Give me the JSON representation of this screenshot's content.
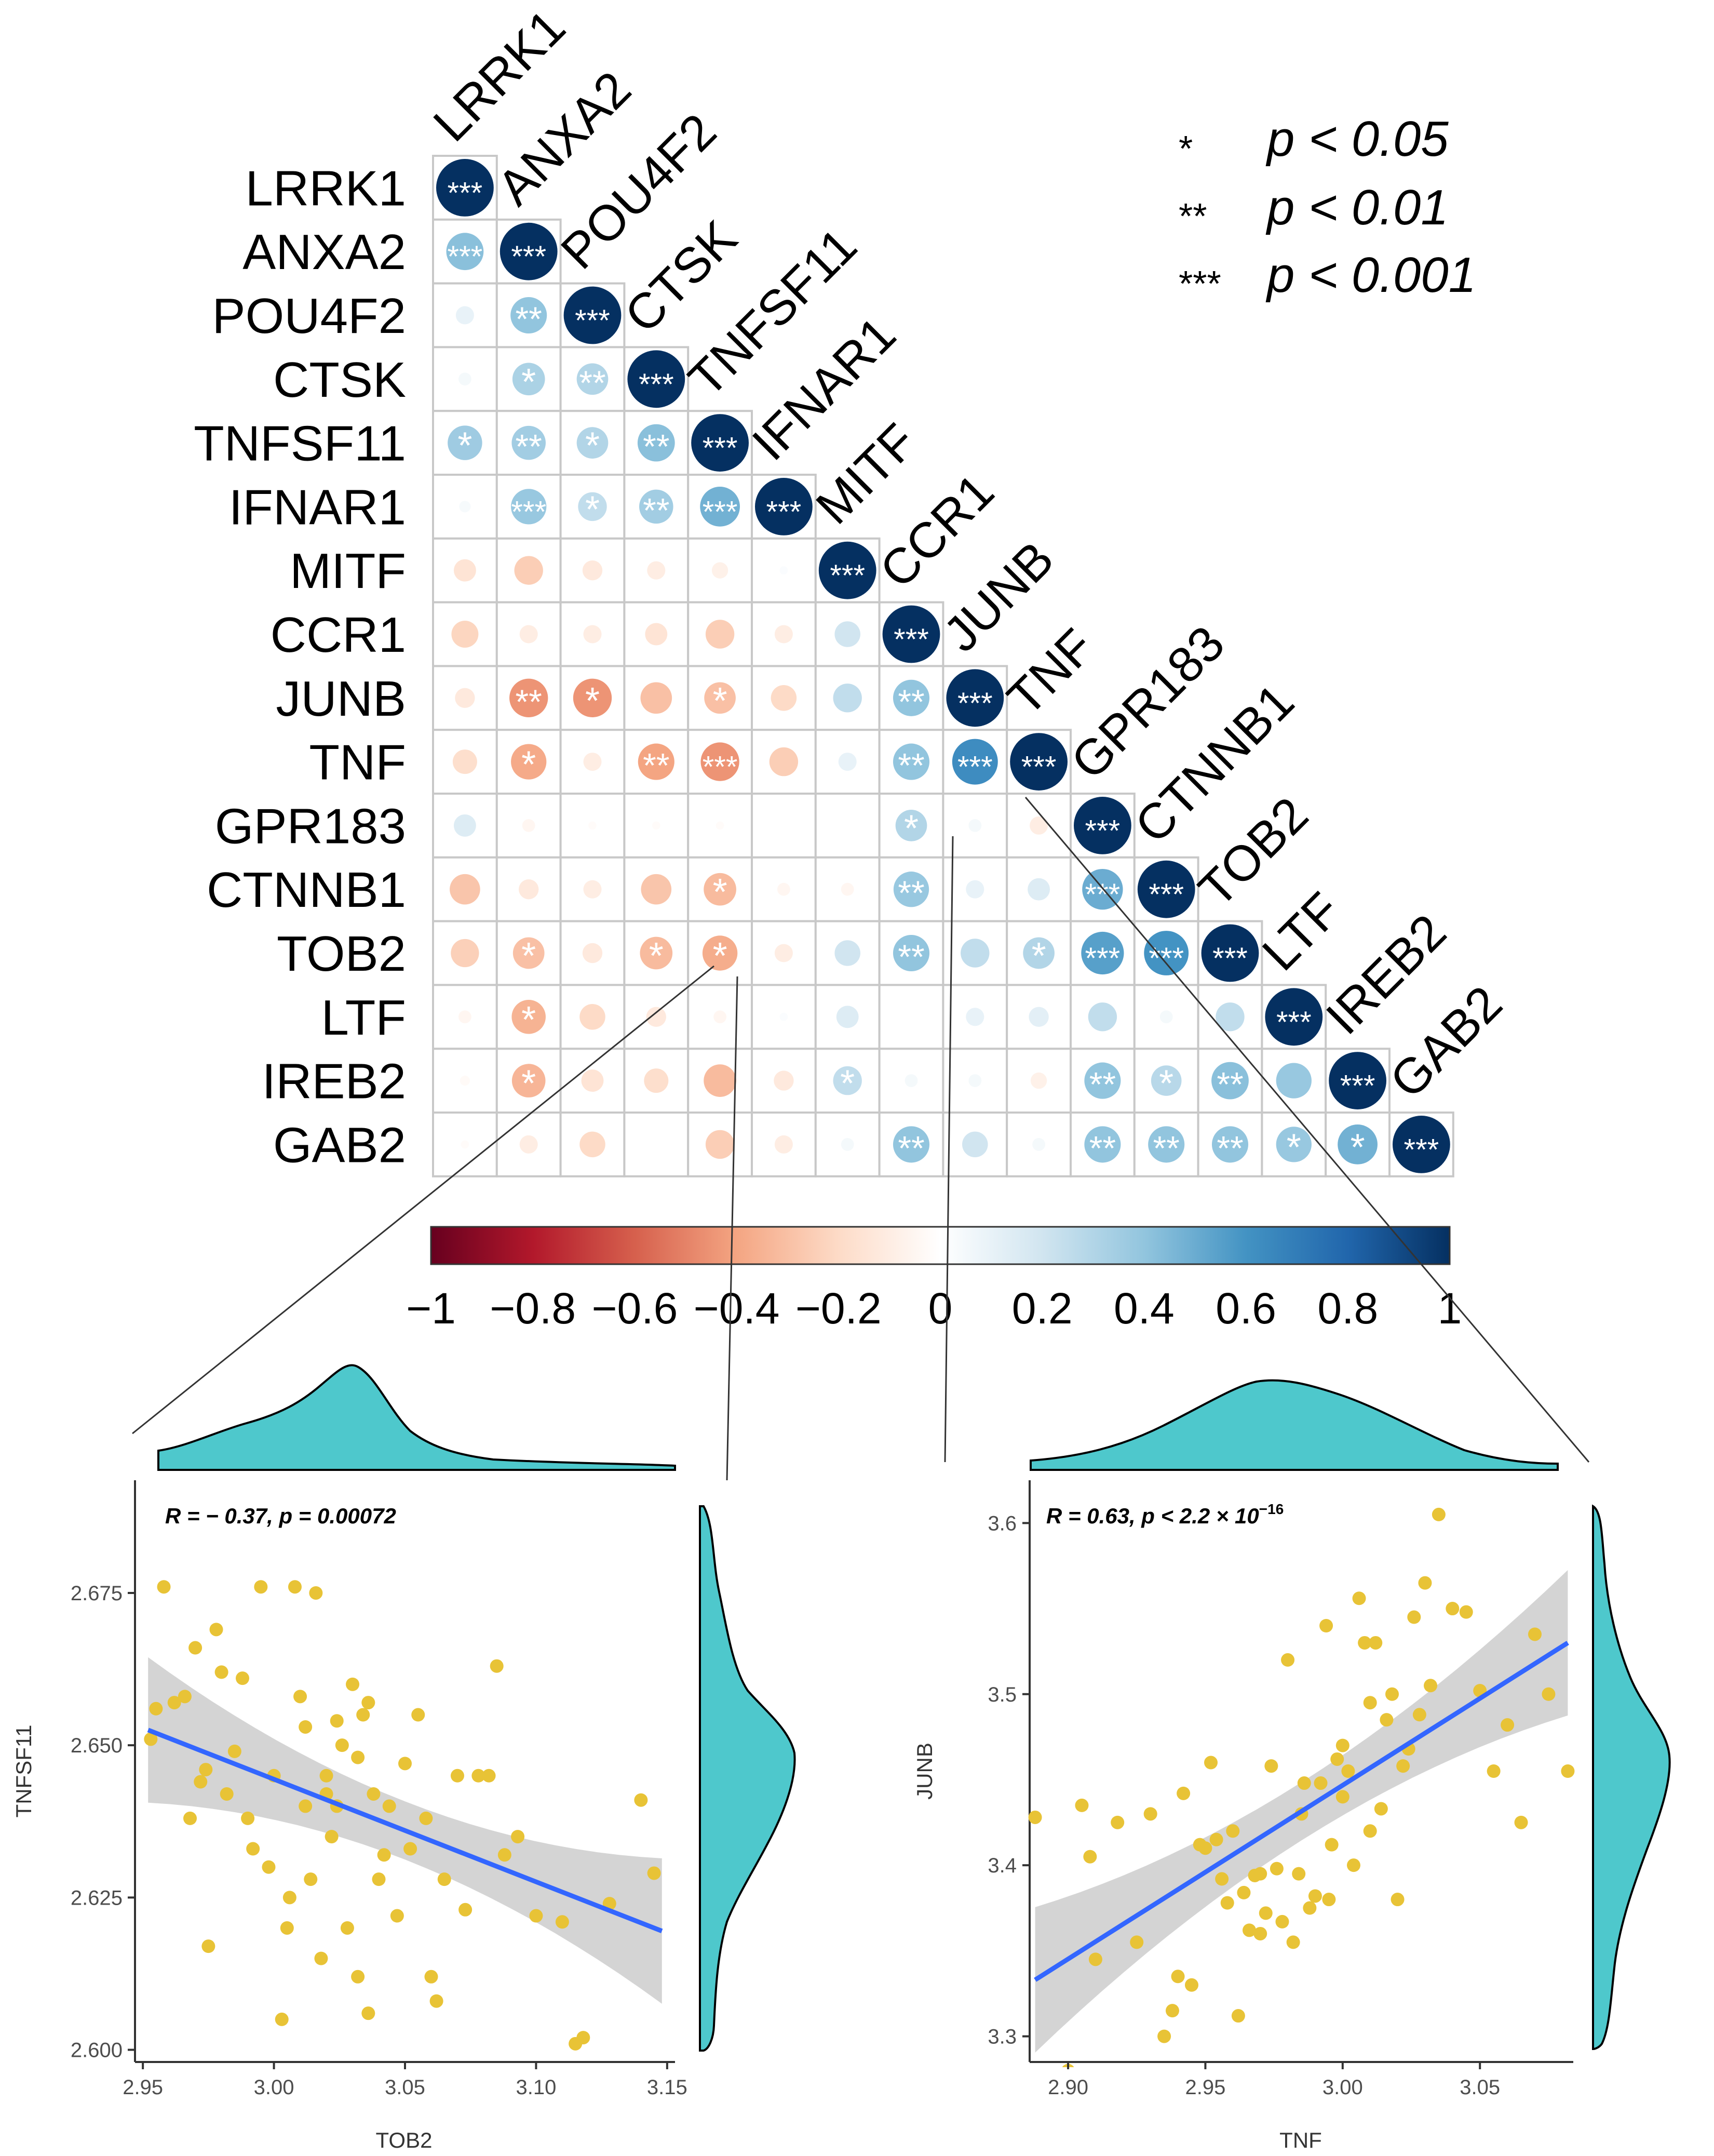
{
  "legend": {
    "entries": [
      {
        "stars": "*",
        "label": "p < 0.05"
      },
      {
        "stars": "**",
        "label": "p < 0.01"
      },
      {
        "stars": "***",
        "label": "p < 0.001"
      }
    ]
  },
  "chart_data": [
    {
      "type": "heatmap",
      "title": "",
      "variables": [
        "LRRK1",
        "ANXA2",
        "POU4F2",
        "CTSK",
        "TNFSF11",
        "IFNAR1",
        "MITF",
        "CCR1",
        "JUNB",
        "TNF",
        "GPR183",
        "CTNNB1",
        "TOB2",
        "LTF",
        "IREB2",
        "GAB2"
      ],
      "matrix": [
        [
          1
        ],
        [
          0.42,
          1
        ],
        [
          0.1,
          0.4,
          1
        ],
        [
          0.05,
          0.32,
          0.3,
          1
        ],
        [
          0.36,
          0.35,
          0.3,
          0.42,
          1
        ],
        [
          0.04,
          0.38,
          0.25,
          0.35,
          0.48,
          1
        ],
        [
          -0.15,
          -0.25,
          -0.12,
          -0.1,
          -0.08,
          0.02,
          1
        ],
        [
          -0.22,
          -0.1,
          -0.1,
          -0.15,
          -0.25,
          -0.1,
          0.2,
          1
        ],
        [
          -0.12,
          -0.45,
          -0.45,
          -0.3,
          -0.3,
          -0.2,
          0.25,
          0.4,
          1
        ],
        [
          -0.18,
          -0.38,
          -0.1,
          -0.4,
          -0.45,
          -0.25,
          0.1,
          0.4,
          0.63,
          1
        ],
        [
          0.15,
          -0.05,
          -0.02,
          -0.02,
          -0.02,
          0.0,
          0.0,
          0.3,
          0.05,
          -0.1,
          1
        ],
        [
          -0.28,
          -0.12,
          -0.1,
          -0.28,
          -0.32,
          -0.05,
          -0.05,
          0.38,
          0.1,
          0.15,
          0.5,
          1
        ],
        [
          -0.24,
          -0.3,
          -0.12,
          -0.32,
          -0.37,
          -0.1,
          0.2,
          0.4,
          0.25,
          0.3,
          0.55,
          0.6,
          1
        ],
        [
          -0.05,
          -0.35,
          -0.2,
          -0.12,
          -0.05,
          0.02,
          0.15,
          0.0,
          0.1,
          0.12,
          0.25,
          0.05,
          0.25,
          1
        ],
        [
          -0.03,
          -0.34,
          -0.15,
          -0.18,
          -0.32,
          -0.12,
          0.25,
          0.05,
          0.05,
          -0.08,
          0.4,
          0.28,
          0.42,
          0.38,
          1
        ],
        [
          -0.02,
          -0.1,
          -0.2,
          0.0,
          -0.25,
          -0.1,
          0.05,
          0.4,
          0.2,
          0.05,
          0.4,
          0.4,
          0.4,
          0.38,
          0.48,
          1
        ]
      ],
      "significance": [
        [
          "***"
        ],
        [
          "***",
          "***"
        ],
        [
          "",
          "**",
          "***"
        ],
        [
          "",
          "*",
          "**",
          "***"
        ],
        [
          "*",
          "**",
          "*",
          "**",
          "***"
        ],
        [
          "",
          "***",
          "*",
          "**",
          "***",
          "***"
        ],
        [
          "",
          "",
          "",
          "",
          "",
          "",
          "***"
        ],
        [
          "",
          "",
          "",
          "",
          "",
          "",
          "",
          "***"
        ],
        [
          "",
          "**",
          "*",
          "",
          "*",
          "",
          "",
          "**",
          "***"
        ],
        [
          "",
          "*",
          "",
          "**",
          "***",
          "",
          "",
          "**",
          "***",
          "***"
        ],
        [
          "",
          "",
          "",
          "",
          "",
          "",
          "",
          "*",
          "",
          "",
          "***"
        ],
        [
          "",
          "",
          "",
          "",
          "*",
          "",
          "",
          "**",
          "",
          "",
          "***",
          "***"
        ],
        [
          "",
          "*",
          "",
          "*",
          "*",
          "",
          "",
          "**",
          "",
          "*",
          "***",
          "***",
          "***"
        ],
        [
          "",
          "*",
          "",
          "",
          "",
          "",
          "",
          "",
          "",
          "",
          "",
          "",
          "",
          "***"
        ],
        [
          "",
          "*",
          "",
          "",
          "",
          "",
          "*",
          "",
          "",
          "",
          "**",
          "*",
          "**",
          "",
          "***"
        ],
        [
          "",
          "",
          "",
          "",
          "",
          "",
          "",
          "**",
          "",
          "",
          "**",
          "**",
          "**",
          "*",
          "*",
          "***"
        ]
      ],
      "colorbar": {
        "range": [
          -1,
          1
        ],
        "ticks": [
          "−1",
          "−0.8",
          "−0.6",
          "−0.4",
          "−0.2",
          "0",
          "0.2",
          "0.4",
          "0.6",
          "0.8",
          "1"
        ]
      }
    },
    {
      "type": "scatter",
      "annotation": {
        "r": "R = − 0.37, ",
        "p": "p = 0.00072"
      },
      "xlabel": "TOB2",
      "ylabel": "TNFSF11",
      "xlim": [
        2.947,
        3.153
      ],
      "ylim": [
        2.598,
        2.6935
      ],
      "xticks": [
        "2.95",
        "3.00",
        "3.05",
        "3.10",
        "3.15"
      ],
      "yticks": [
        "2.600",
        "2.625",
        "2.650",
        "2.675"
      ],
      "fit": {
        "x": [
          2.952,
          3.148
        ],
        "y": [
          2.6525,
          2.6195
        ]
      },
      "points": [
        [
          2.953,
          2.651
        ],
        [
          2.955,
          2.656
        ],
        [
          2.958,
          2.676
        ],
        [
          2.962,
          2.657
        ],
        [
          2.966,
          2.658
        ],
        [
          2.968,
          2.638
        ],
        [
          2.97,
          2.666
        ],
        [
          2.972,
          2.644
        ],
        [
          2.974,
          2.646
        ],
        [
          2.975,
          2.617
        ],
        [
          2.978,
          2.669
        ],
        [
          2.98,
          2.662
        ],
        [
          2.982,
          2.642
        ],
        [
          2.985,
          2.649
        ],
        [
          2.988,
          2.661
        ],
        [
          2.99,
          2.638
        ],
        [
          2.992,
          2.633
        ],
        [
          2.995,
          2.676
        ],
        [
          2.998,
          2.63
        ],
        [
          3.0,
          2.645
        ],
        [
          3.003,
          2.605
        ],
        [
          3.005,
          2.62
        ],
        [
          3.006,
          2.625
        ],
        [
          3.008,
          2.676
        ],
        [
          3.01,
          2.658
        ],
        [
          3.012,
          2.64
        ],
        [
          3.014,
          2.628
        ],
        [
          3.016,
          2.675
        ],
        [
          3.018,
          2.615
        ],
        [
          3.02,
          2.645
        ],
        [
          3.022,
          2.635
        ],
        [
          3.024,
          2.654
        ],
        [
          3.026,
          2.65
        ],
        [
          3.028,
          2.62
        ],
        [
          3.03,
          2.66
        ],
        [
          3.032,
          2.612
        ],
        [
          3.034,
          2.655
        ],
        [
          3.036,
          2.606
        ],
        [
          3.038,
          2.642
        ],
        [
          3.04,
          2.628
        ],
        [
          3.042,
          2.632
        ],
        [
          3.044,
          2.64
        ],
        [
          3.047,
          2.622
        ],
        [
          3.05,
          2.647
        ],
        [
          3.052,
          2.633
        ],
        [
          3.055,
          2.655
        ],
        [
          3.058,
          2.638
        ],
        [
          3.06,
          2.612
        ],
        [
          3.062,
          2.608
        ],
        [
          3.065,
          2.628
        ],
        [
          3.07,
          2.645
        ],
        [
          3.073,
          2.623
        ],
        [
          3.078,
          2.645
        ],
        [
          3.082,
          2.645
        ],
        [
          3.085,
          2.663
        ],
        [
          3.088,
          2.632
        ],
        [
          3.093,
          2.635
        ],
        [
          3.1,
          2.622
        ],
        [
          3.11,
          2.621
        ],
        [
          3.115,
          2.601
        ],
        [
          3.118,
          2.602
        ],
        [
          3.128,
          2.624
        ],
        [
          3.14,
          2.641
        ],
        [
          3.145,
          2.629
        ],
        [
          3.024,
          2.64
        ],
        [
          3.032,
          2.648
        ],
        [
          3.012,
          2.653
        ],
        [
          3.036,
          2.657
        ],
        [
          3.02,
          2.642
        ]
      ]
    },
    {
      "type": "scatter",
      "annotation": {
        "r": "R = 0.63, ",
        "p": "p < 2.2 × 10",
        "exp": "−16"
      },
      "xlabel": "TNF",
      "ylabel": "JUNB",
      "xlim": [
        2.886,
        3.084
      ],
      "ylim": [
        3.285,
        3.625
      ],
      "xticks": [
        "2.90",
        "2.95",
        "3.00",
        "3.05"
      ],
      "yticks": [
        "3.3",
        "3.4",
        "3.5",
        "3.6"
      ],
      "fit": {
        "x": [
          2.888,
          3.082
        ],
        "y": [
          3.333,
          3.53
        ]
      },
      "points": [
        [
          2.888,
          3.428
        ],
        [
          2.9,
          3.28
        ],
        [
          2.905,
          3.435
        ],
        [
          2.908,
          3.405
        ],
        [
          2.91,
          3.345
        ],
        [
          2.918,
          3.425
        ],
        [
          2.925,
          3.355
        ],
        [
          2.93,
          3.43
        ],
        [
          2.935,
          3.3
        ],
        [
          2.938,
          3.315
        ],
        [
          2.94,
          3.335
        ],
        [
          2.942,
          3.442
        ],
        [
          2.945,
          3.33
        ],
        [
          2.948,
          3.412
        ],
        [
          2.95,
          3.41
        ],
        [
          2.952,
          3.46
        ],
        [
          2.954,
          3.415
        ],
        [
          2.956,
          3.392
        ],
        [
          2.958,
          3.378
        ],
        [
          2.96,
          3.42
        ],
        [
          2.962,
          3.312
        ],
        [
          2.964,
          3.384
        ],
        [
          2.966,
          3.362
        ],
        [
          2.968,
          3.394
        ],
        [
          2.97,
          3.36
        ],
        [
          2.972,
          3.372
        ],
        [
          2.974,
          3.458
        ],
        [
          2.976,
          3.398
        ],
        [
          2.978,
          3.367
        ],
        [
          2.98,
          3.52
        ],
        [
          2.982,
          3.355
        ],
        [
          2.984,
          3.395
        ],
        [
          2.986,
          3.448
        ],
        [
          2.988,
          3.375
        ],
        [
          2.99,
          3.382
        ],
        [
          2.992,
          3.448
        ],
        [
          2.994,
          3.54
        ],
        [
          2.996,
          3.412
        ],
        [
          2.998,
          3.462
        ],
        [
          3.0,
          3.47
        ],
        [
          3.002,
          3.455
        ],
        [
          3.004,
          3.4
        ],
        [
          3.006,
          3.556
        ],
        [
          3.008,
          3.53
        ],
        [
          3.01,
          3.495
        ],
        [
          3.012,
          3.53
        ],
        [
          3.014,
          3.433
        ],
        [
          3.016,
          3.485
        ],
        [
          3.018,
          3.5
        ],
        [
          3.02,
          3.38
        ],
        [
          3.022,
          3.458
        ],
        [
          3.024,
          3.468
        ],
        [
          3.026,
          3.545
        ],
        [
          3.028,
          3.488
        ],
        [
          3.03,
          3.565
        ],
        [
          3.032,
          3.505
        ],
        [
          3.035,
          3.605
        ],
        [
          3.04,
          3.55
        ],
        [
          3.045,
          3.548
        ],
        [
          3.05,
          3.502
        ],
        [
          3.055,
          3.455
        ],
        [
          3.06,
          3.482
        ],
        [
          3.065,
          3.425
        ],
        [
          3.07,
          3.535
        ],
        [
          3.075,
          3.5
        ],
        [
          3.082,
          3.455
        ],
        [
          3.0,
          3.44
        ],
        [
          2.995,
          3.38
        ],
        [
          3.01,
          3.42
        ],
        [
          2.985,
          3.43
        ],
        [
          2.97,
          3.395
        ]
      ]
    }
  ]
}
